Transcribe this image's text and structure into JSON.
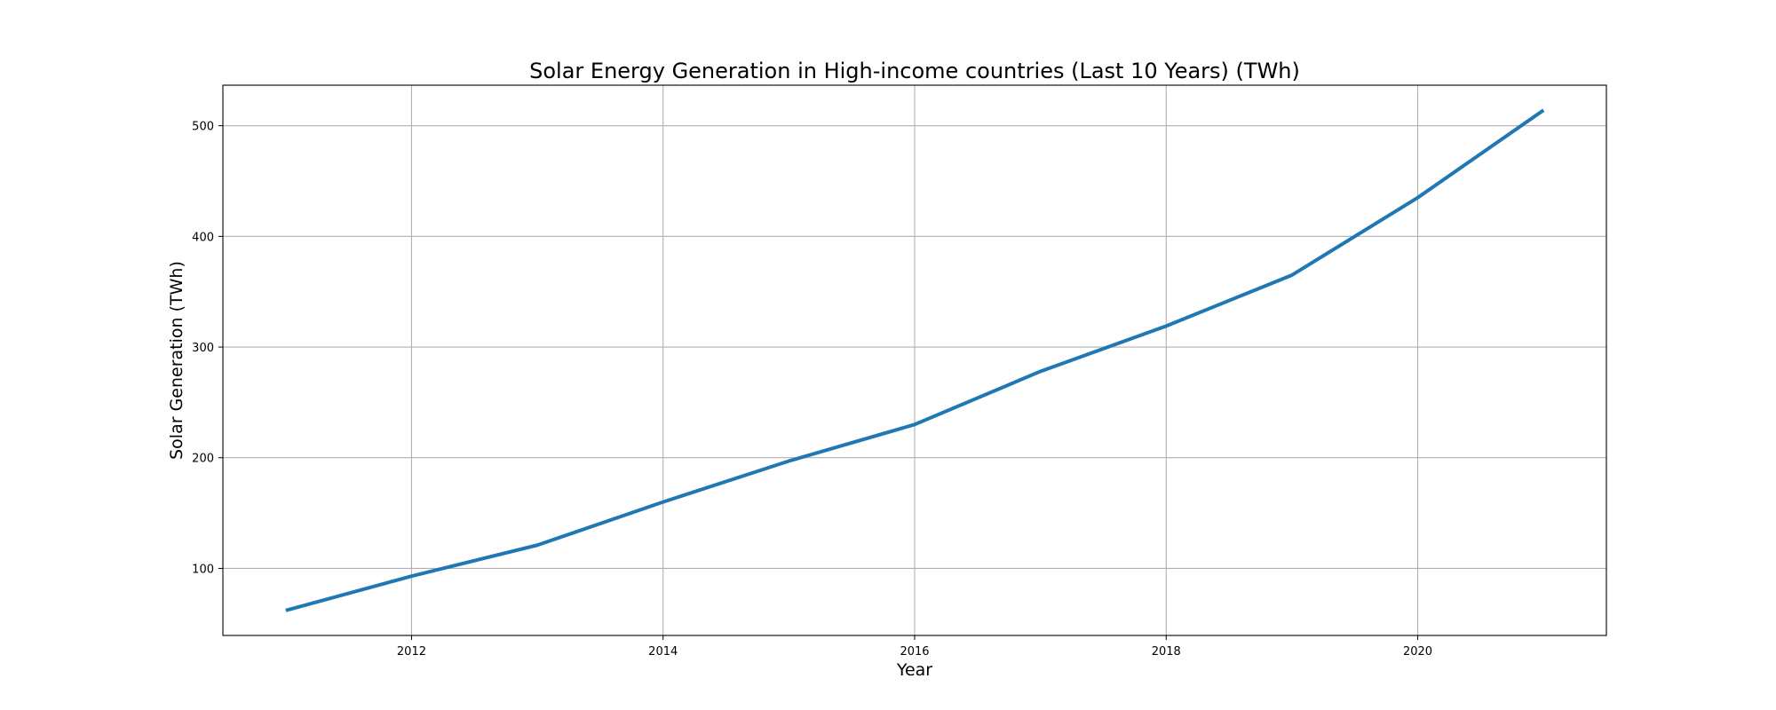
{
  "chart_data": {
    "type": "line",
    "title": "Solar Energy Generation in High-income countries (Last 10 Years) (TWh)",
    "xlabel": "Year",
    "ylabel": "Solar Generation (TWh)",
    "x": [
      2011,
      2012,
      2013,
      2014,
      2015,
      2016,
      2017,
      2018,
      2019,
      2020,
      2021
    ],
    "series": [
      {
        "values": [
          62,
          93,
          121,
          160,
          197,
          230,
          278,
          319,
          365,
          435,
          514
        ],
        "color": "#1f77b4"
      }
    ],
    "xlim": [
      2010.5,
      2021.5
    ],
    "ylim": [
      39.4,
      536.6
    ],
    "x_ticks": [
      "2012",
      "2014",
      "2016",
      "2018",
      "2020"
    ],
    "y_ticks": [
      "100",
      "200",
      "300",
      "400",
      "500"
    ],
    "grid": true,
    "legend": "none"
  }
}
